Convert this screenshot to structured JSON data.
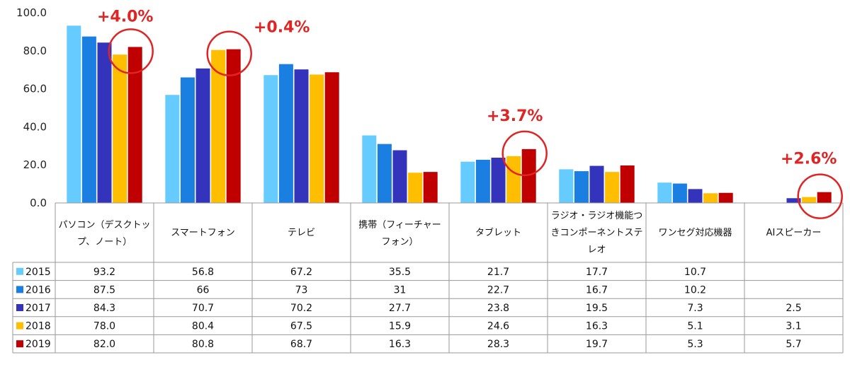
{
  "chart_data": {
    "type": "bar",
    "categories": [
      [
        "パソコン（デスクトッ",
        "プ、ノート）"
      ],
      [
        "スマートフォン"
      ],
      [
        "テレビ"
      ],
      [
        "携帯（フィーチャー",
        "フォン）"
      ],
      [
        "タブレット"
      ],
      [
        "ラジオ・ラジオ機能つ",
        "きコンポーネントステ",
        "レオ"
      ],
      [
        "ワンセグ対応機器"
      ],
      [
        "AIスピーカー"
      ]
    ],
    "y_ticks": [
      "100.0",
      "80.0",
      "60.0",
      "40.0",
      "20.0",
      "0.0"
    ],
    "ylim": [
      0,
      100
    ],
    "series": [
      {
        "name": "2015",
        "color": "#66ccff",
        "values": [
          93.2,
          56.8,
          67.2,
          35.5,
          21.7,
          17.7,
          10.7,
          null
        ],
        "labels": [
          "93.2",
          "56.8",
          "67.2",
          "35.5",
          "21.7",
          "17.7",
          "10.7",
          ""
        ]
      },
      {
        "name": "2016",
        "color": "#1a7fe0",
        "values": [
          87.5,
          66,
          73,
          31,
          22.7,
          16.7,
          10.2,
          null
        ],
        "labels": [
          "87.5",
          "66",
          "73",
          "31",
          "22.7",
          "16.7",
          "10.2",
          ""
        ]
      },
      {
        "name": "2017",
        "color": "#3333bb",
        "values": [
          84.3,
          70.7,
          70.2,
          27.7,
          23.8,
          19.5,
          7.3,
          2.5
        ],
        "labels": [
          "84.3",
          "70.7",
          "70.2",
          "27.7",
          "23.8",
          "19.5",
          "7.3",
          "2.5"
        ]
      },
      {
        "name": "2018",
        "color": "#ffbf00",
        "values": [
          78.0,
          80.4,
          67.5,
          15.9,
          24.6,
          16.3,
          5.1,
          3.1
        ],
        "labels": [
          "78.0",
          "80.4",
          "67.5",
          "15.9",
          "24.6",
          "16.3",
          "5.1",
          "3.1"
        ]
      },
      {
        "name": "2019",
        "color": "#c00000",
        "values": [
          82.0,
          80.8,
          68.7,
          16.3,
          28.3,
          19.7,
          5.3,
          5.7
        ],
        "labels": [
          "82.0",
          "80.8",
          "68.7",
          "16.3",
          "28.3",
          "19.7",
          "5.3",
          "5.7"
        ]
      }
    ],
    "annotations": [
      {
        "text": "+4.0%",
        "category_index": 0,
        "series_index": 4
      },
      {
        "text": "+0.4%",
        "category_index": 1,
        "series_index": 4
      },
      {
        "text": "+3.7%",
        "category_index": 4,
        "series_index": 4
      },
      {
        "text": "+2.6%",
        "category_index": 7,
        "series_index": 4
      }
    ],
    "annotation_color": "#e02424",
    "grid": false,
    "legend": "data-table",
    "title": "",
    "xlabel": "",
    "ylabel": ""
  }
}
